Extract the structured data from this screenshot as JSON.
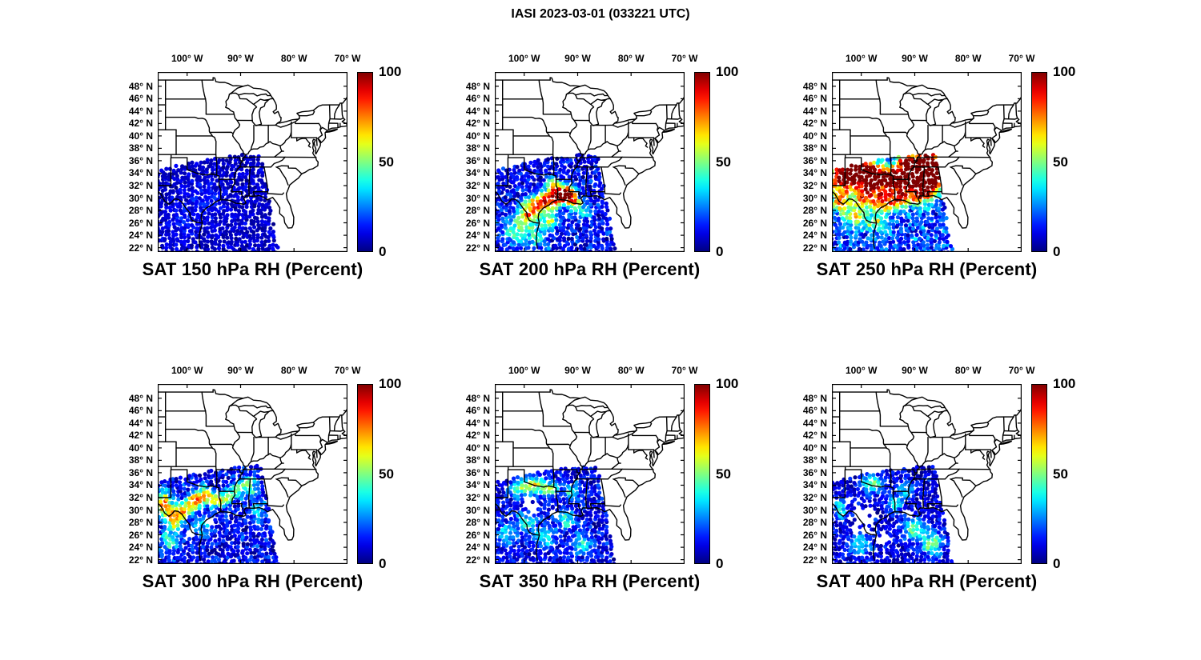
{
  "figure": {
    "title": "IASI 2023-03-01 (033221 UTC)",
    "background": "#ffffff"
  },
  "axes": {
    "lon_range": [
      -105.5,
      -70.0
    ],
    "lat_range": [
      21.3,
      50.3
    ],
    "lon_ticks": [
      {
        "value": -100,
        "label": "100° W"
      },
      {
        "value": -90,
        "label": "90° W"
      },
      {
        "value": -80,
        "label": "80° W"
      },
      {
        "value": -70,
        "label": "70° W"
      }
    ],
    "lat_ticks": [
      {
        "value": 48,
        "label": "48° N"
      },
      {
        "value": 46,
        "label": "46° N"
      },
      {
        "value": 44,
        "label": "44° N"
      },
      {
        "value": 42,
        "label": "42° N"
      },
      {
        "value": 40,
        "label": "40° N"
      },
      {
        "value": 38,
        "label": "38° N"
      },
      {
        "value": 36,
        "label": "36° N"
      },
      {
        "value": 34,
        "label": "34° N"
      },
      {
        "value": 32,
        "label": "32° N"
      },
      {
        "value": 30,
        "label": "30° N"
      },
      {
        "value": 28,
        "label": "28° N"
      },
      {
        "value": 26,
        "label": "26° N"
      },
      {
        "value": 24,
        "label": "24° N"
      },
      {
        "value": 22,
        "label": "22° N"
      }
    ]
  },
  "colorbar": {
    "min": 0,
    "max": 100,
    "colormap": "jet",
    "ticks": [
      {
        "value": 100,
        "label": "100"
      },
      {
        "value": 50,
        "label": "50"
      },
      {
        "value": 0,
        "label": "0"
      }
    ]
  },
  "satellite_swath_polygon": [
    [
      -105.6,
      34.4
    ],
    [
      -100.0,
      35.7
    ],
    [
      -95.0,
      36.4
    ],
    [
      -90.0,
      36.95
    ],
    [
      -86.2,
      37.2
    ],
    [
      -82.8,
      21.0
    ],
    [
      -105.6,
      21.0
    ]
  ],
  "chart_data": [
    {
      "type": "scatter",
      "title": "SAT 150 hPa RH (Percent)",
      "pressure_level_hpa": 150,
      "color_variable": "relative humidity (percent)",
      "color_range": [
        0,
        100
      ],
      "lon_range": [
        -105.5,
        -70.0
      ],
      "lat_range": [
        21.3,
        50.3
      ],
      "summary": "Entire satellite swath uniformly dry: RH ~0-15% (dark blue) everywhere over Texas and the Gulf region.",
      "field_model": {
        "seed": 3,
        "base": 7,
        "noise_amp": 4,
        "jitter": 5,
        "bumps": [
          [
            -96,
            30,
            8,
            2.5,
            2
          ],
          [
            -101,
            26,
            6,
            2,
            2
          ]
        ],
        "holes": []
      }
    },
    {
      "type": "scatter",
      "title": "SAT 200 hPa RH (Percent)",
      "pressure_level_hpa": 200,
      "color_variable": "relative humidity (percent)",
      "color_range": [
        0,
        100
      ],
      "lon_range": [
        -105.5,
        -70.0
      ],
      "lat_range": [
        21.3,
        50.3
      ],
      "summary": "Mostly dry (blue) with moist streaks of 60-100% RH (yellow-red) over south Texas and Louisiana near 27-32 N.",
      "field_model": {
        "seed": 7,
        "base": 11,
        "noise_amp": 9,
        "jitter": 9,
        "bumps": [
          [
            -96.5,
            29.3,
            75,
            1.8,
            1.1
          ],
          [
            -93.6,
            30.4,
            85,
            1.2,
            0.9
          ],
          [
            -91.8,
            30.7,
            95,
            0.9,
            0.8
          ],
          [
            -99.2,
            27.4,
            55,
            1.5,
            1.2
          ],
          [
            -101.6,
            24.8,
            35,
            1.6,
            1.4
          ],
          [
            -94.6,
            32.2,
            50,
            1.0,
            0.8
          ],
          [
            -90.6,
            29.3,
            55,
            0.8,
            0.8
          ],
          [
            -97.6,
            23.8,
            30,
            1.4,
            1.2
          ],
          [
            -95.2,
            26.3,
            40,
            1.1,
            1.0
          ],
          [
            -88.9,
            28.0,
            25,
            1.2,
            1.0
          ]
        ],
        "holes": []
      }
    },
    {
      "type": "scatter",
      "title": "SAT 250 hPa RH (Percent)",
      "pressure_level_hpa": 250,
      "color_variable": "relative humidity (percent)",
      "color_range": [
        0,
        100
      ],
      "lon_range": [
        -105.5,
        -70.0
      ],
      "lat_range": [
        21.3,
        50.3
      ],
      "summary": "Widespread moist band 80-100% RH (dark red) across 30-36 N from New Mexico to Georgia; drier (blue) south of 26 N.",
      "field_model": {
        "seed": 11,
        "base": 18,
        "noise_amp": 13,
        "jitter": 11,
        "bumps": [
          [
            -103.6,
            33.4,
            85,
            1.7,
            1.7
          ],
          [
            -100.6,
            34.4,
            92,
            1.7,
            1.5
          ],
          [
            -97.6,
            33.4,
            88,
            1.5,
            1.5
          ],
          [
            -94.6,
            33.0,
            82,
            1.4,
            1.4
          ],
          [
            -91.6,
            33.4,
            92,
            1.4,
            1.4
          ],
          [
            -88.6,
            34.0,
            90,
            1.5,
            1.7
          ],
          [
            -85.9,
            34.3,
            92,
            1.2,
            1.9
          ],
          [
            -99.2,
            30.4,
            62,
            1.7,
            1.4
          ],
          [
            -95.6,
            29.4,
            58,
            1.4,
            1.2
          ],
          [
            -92.6,
            30.0,
            68,
            1.2,
            1.0
          ],
          [
            -89.6,
            30.4,
            60,
            1.0,
            1.1
          ],
          [
            -104.1,
            29.4,
            48,
            1.2,
            1.3
          ],
          [
            -101.2,
            27.0,
            38,
            1.5,
            1.4
          ],
          [
            -97.2,
            26.0,
            32,
            1.3,
            1.2
          ],
          [
            -87.5,
            31.5,
            55,
            1.0,
            1.5
          ],
          [
            -88.3,
            36.2,
            70,
            1.2,
            0.9
          ],
          [
            -91.8,
            36.0,
            65,
            1.1,
            0.8
          ]
        ],
        "holes": []
      }
    },
    {
      "type": "scatter",
      "title": "SAT 300 hPa RH (Percent)",
      "pressure_level_hpa": 300,
      "color_variable": "relative humidity (percent)",
      "color_range": [
        0,
        100
      ],
      "lon_range": [
        -105.5,
        -70.0
      ],
      "lat_range": [
        21.3,
        50.3
      ],
      "summary": "Scattered moist cells 50-75% RH (yellow-orange) over central and west Texas near 28-33 N; dry blue background elsewhere.",
      "field_model": {
        "seed": 13,
        "base": 11,
        "noise_amp": 9,
        "jitter": 9,
        "bumps": [
          [
            -104.4,
            31.0,
            68,
            1.1,
            1.4
          ],
          [
            -102.4,
            28.6,
            62,
            1.0,
            1.2
          ],
          [
            -100.6,
            30.0,
            58,
            0.9,
            0.9
          ],
          [
            -98.6,
            31.4,
            70,
            0.9,
            0.9
          ],
          [
            -96.6,
            32.4,
            64,
            0.9,
            0.9
          ],
          [
            -94.6,
            31.6,
            52,
            0.9,
            0.8
          ],
          [
            -92.6,
            32.0,
            46,
            0.8,
            0.8
          ],
          [
            -90.6,
            33.4,
            42,
            0.9,
            0.9
          ],
          [
            -88.2,
            34.0,
            38,
            1.0,
            1.1
          ],
          [
            -103.2,
            25.0,
            32,
            1.3,
            1.2
          ],
          [
            -97.2,
            27.4,
            26,
            1.3,
            1.1
          ],
          [
            -86.8,
            30.0,
            25,
            1.0,
            1.3
          ]
        ],
        "holes": [
          [
            -99.8,
            26.2,
            1.4,
            1.2
          ],
          [
            -95.6,
            28.6,
            1.1,
            0.9
          ]
        ]
      }
    },
    {
      "type": "scatter",
      "title": "SAT 350 hPa RH (Percent)",
      "pressure_level_hpa": 350,
      "color_variable": "relative humidity (percent)",
      "color_range": [
        0,
        100
      ],
      "lon_range": [
        -105.5,
        -70.0
      ],
      "lat_range": [
        21.3,
        50.3
      ],
      "summary": "Mostly dry (blue-cyan); moderate 40-55% RH patches near 33-34 N; retrieval gaps over east Texas.",
      "field_model": {
        "seed": 17,
        "base": 11,
        "noise_amp": 8,
        "jitter": 8,
        "bumps": [
          [
            -98.2,
            34.0,
            52,
            1.3,
            0.9
          ],
          [
            -95.2,
            33.4,
            44,
            1.1,
            0.8
          ],
          [
            -101.2,
            33.4,
            38,
            1.1,
            0.8
          ],
          [
            -99.6,
            28.0,
            30,
            1.3,
            1.2
          ],
          [
            -96.2,
            25.8,
            28,
            1.3,
            1.2
          ],
          [
            -92.2,
            28.4,
            32,
            1.1,
            1.0
          ],
          [
            -89.2,
            24.6,
            32,
            1.3,
            1.1
          ],
          [
            -103.2,
            26.2,
            26,
            1.1,
            1.1
          ],
          [
            -91.2,
            33.0,
            35,
            0.9,
            0.8
          ]
        ],
        "holes": [
          [
            -99.0,
            30.6,
            2.0,
            1.6
          ],
          [
            -94.2,
            29.6,
            1.2,
            1.0
          ],
          [
            -102.6,
            29.0,
            1.0,
            1.0
          ]
        ]
      }
    },
    {
      "type": "scatter",
      "title": "SAT 400 hPa RH (Percent)",
      "pressure_level_hpa": 400,
      "color_variable": "relative humidity (percent)",
      "color_range": [
        0,
        100
      ],
      "lon_range": [
        -105.5,
        -70.0
      ],
      "lat_range": [
        21.3,
        50.3
      ],
      "summary": "Mostly dry with scattered 30-45% RH (cyan) patches; large retrieval data gap (white) over central Texas.",
      "field_model": {
        "seed": 19,
        "base": 9,
        "noise_amp": 7,
        "jitter": 7,
        "bumps": [
          [
            -97.8,
            34.3,
            42,
            1.4,
            0.9
          ],
          [
            -93.8,
            31.0,
            32,
            1.1,
            0.9
          ],
          [
            -90.2,
            27.0,
            38,
            1.5,
            1.2
          ],
          [
            -86.8,
            24.6,
            42,
            1.3,
            1.3
          ],
          [
            -100.2,
            24.4,
            28,
            1.6,
            1.2
          ],
          [
            -103.8,
            30.2,
            32,
            0.9,
            1.2
          ],
          [
            -91.6,
            33.2,
            30,
            1.0,
            0.8
          ]
        ],
        "holes": [
          [
            -99.2,
            28.4,
            2.8,
            2.8
          ],
          [
            -95.6,
            25.2,
            1.8,
            1.4
          ],
          [
            -101.8,
            31.6,
            1.3,
            1.1
          ],
          [
            -91.0,
            29.5,
            1.0,
            0.9
          ]
        ]
      }
    }
  ]
}
